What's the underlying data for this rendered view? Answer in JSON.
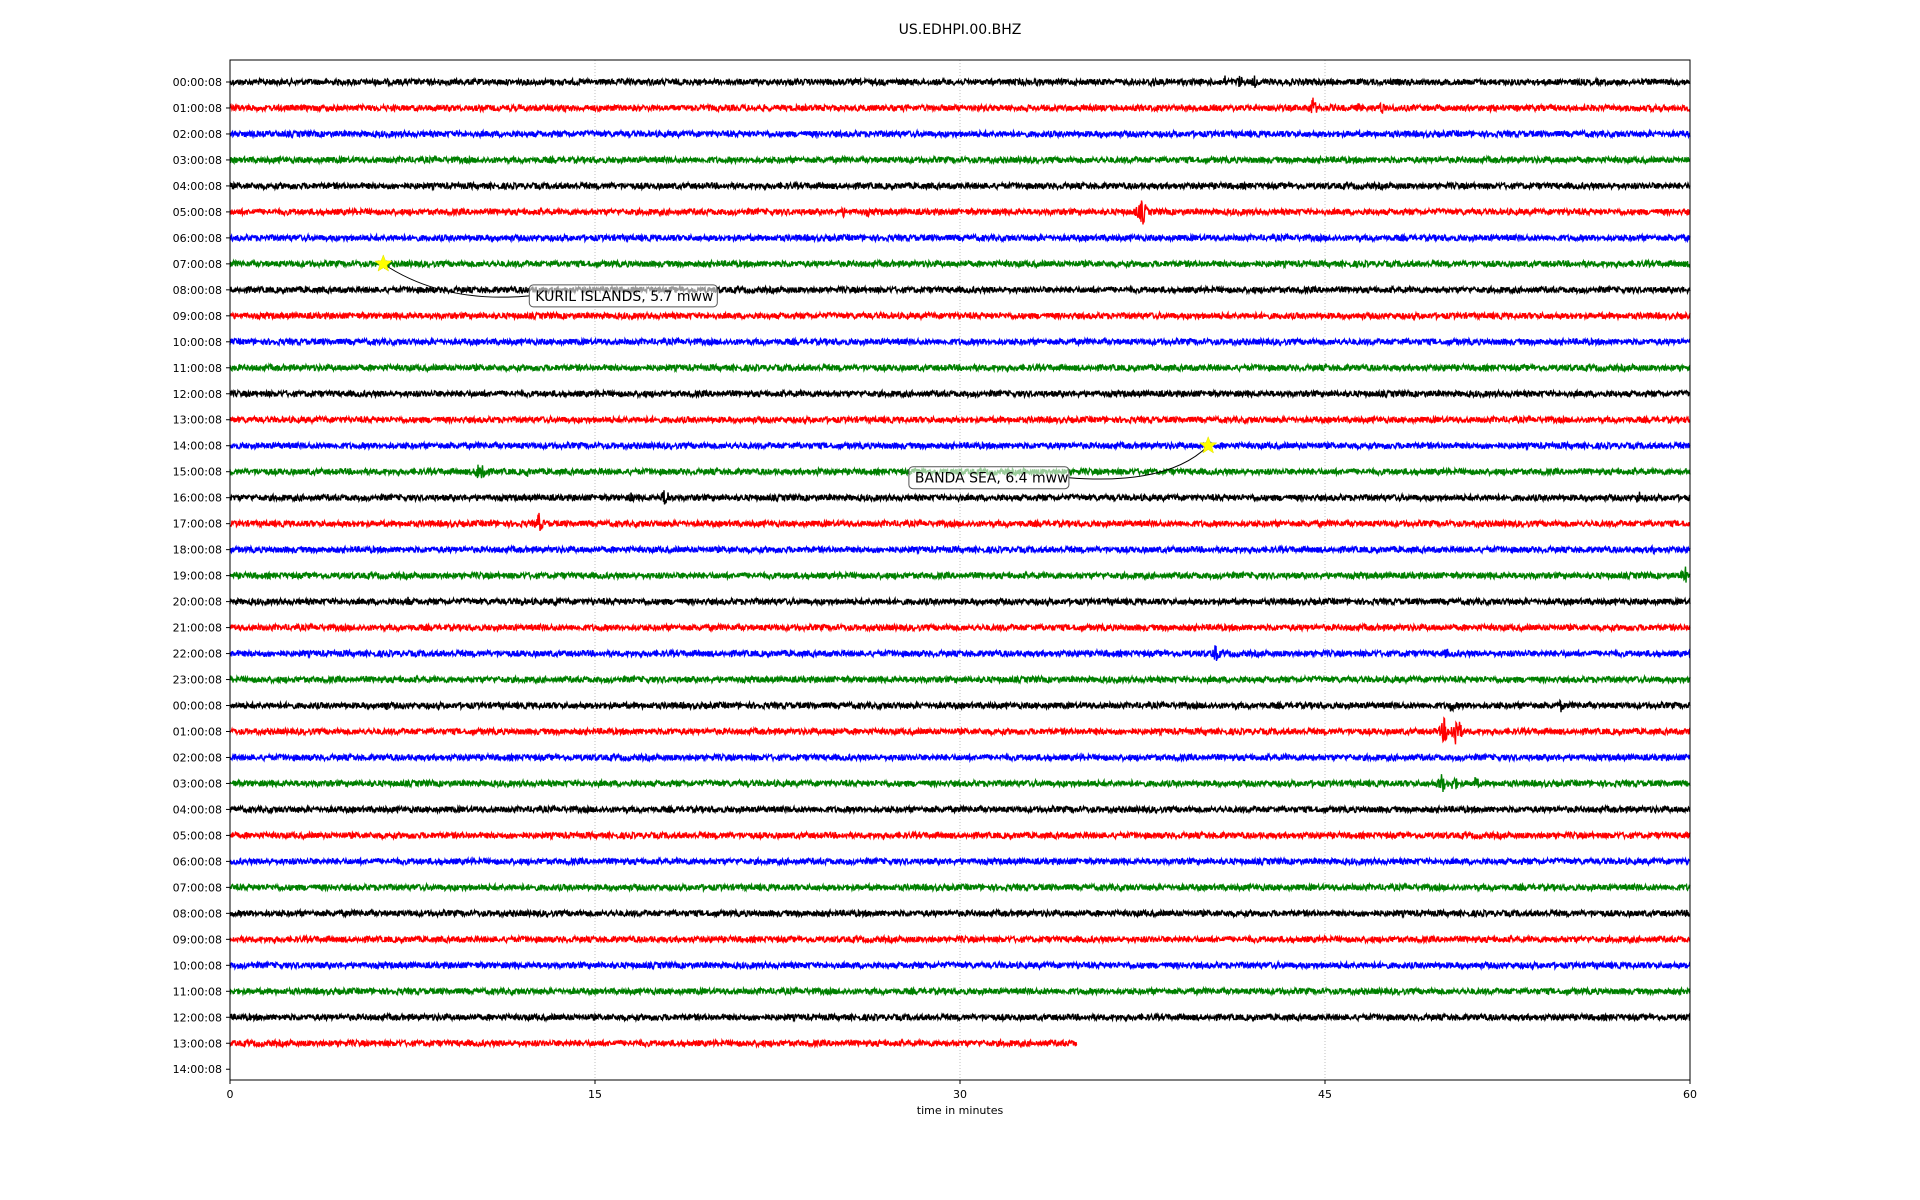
{
  "chart_data": {
    "type": "line",
    "title": "US.EDHPI.00.BHZ",
    "xlabel": "time in minutes",
    "ylabel": "",
    "xlim": [
      0,
      60
    ],
    "xticks": [
      "0",
      "15",
      "30",
      "45",
      "60"
    ],
    "xtick_values": [
      0,
      15,
      30,
      45,
      60
    ],
    "grid": "vertical dotted at 15, 30, 45",
    "colors": [
      "#000000",
      "#ff0000",
      "#0000ff",
      "#008000"
    ],
    "row_labels": [
      "00:00:08",
      "01:00:08",
      "02:00:08",
      "03:00:08",
      "04:00:08",
      "05:00:08",
      "06:00:08",
      "07:00:08",
      "08:00:08",
      "09:00:08",
      "10:00:08",
      "11:00:08",
      "12:00:08",
      "13:00:08",
      "14:00:08",
      "15:00:08",
      "16:00:08",
      "17:00:08",
      "18:00:08",
      "19:00:08",
      "20:00:08",
      "21:00:08",
      "22:00:08",
      "23:00:08",
      "00:00:08",
      "01:00:08",
      "02:00:08",
      "03:00:08",
      "04:00:08",
      "05:00:08",
      "06:00:08",
      "07:00:08",
      "08:00:08",
      "09:00:08",
      "10:00:08",
      "11:00:08",
      "12:00:08",
      "13:00:08",
      "14:00:08"
    ],
    "last_trace_end_minute": 34.8,
    "events_by_row": {
      "0": [
        [
          37.9,
          8
        ],
        [
          40.9,
          7
        ],
        [
          41.5,
          8
        ],
        [
          42.1,
          7
        ]
      ],
      "1": [
        [
          44.5,
          12
        ],
        [
          46.4,
          6
        ],
        [
          47.3,
          8
        ],
        [
          51.8,
          4
        ]
      ],
      "5": [
        [
          16.7,
          3
        ],
        [
          25.2,
          6
        ],
        [
          26.2,
          5
        ],
        [
          37.3,
          8
        ],
        [
          37.5,
          16
        ]
      ],
      "15": [
        [
          10.2,
          10
        ],
        [
          10.4,
          14
        ],
        [
          12.2,
          6
        ],
        [
          24.2,
          5
        ]
      ],
      "16": [
        [
          16.5,
          6
        ],
        [
          17.9,
          12
        ],
        [
          30,
          5
        ],
        [
          51.9,
          4
        ],
        [
          57.9,
          8
        ]
      ],
      "17": [
        [
          10.7,
          5
        ],
        [
          12.7,
          12
        ],
        [
          16.1,
          4
        ],
        [
          32.4,
          4
        ]
      ],
      "18": [
        [
          20.5,
          5
        ],
        [
          42.6,
          3
        ],
        [
          58.5,
          5
        ]
      ],
      "19": [
        [
          3.4,
          4
        ],
        [
          13.9,
          3
        ],
        [
          59.8,
          10
        ]
      ],
      "20": [
        [
          2.8,
          4
        ],
        [
          7.3,
          6
        ],
        [
          12,
          5
        ],
        [
          13.4,
          6
        ]
      ],
      "21": [
        [
          1.3,
          4
        ],
        [
          46.1,
          4
        ]
      ],
      "22": [
        [
          36,
          4
        ],
        [
          40.5,
          10
        ],
        [
          50,
          6
        ]
      ],
      "23": [
        [
          1.4,
          3
        ]
      ],
      "24": [
        [
          6.4,
          6
        ],
        [
          50.2,
          8
        ],
        [
          54.7,
          7
        ]
      ],
      "25": [
        [
          3.4,
          4
        ],
        [
          18.1,
          6
        ],
        [
          24.8,
          6
        ],
        [
          35.6,
          4
        ],
        [
          40.1,
          5
        ],
        [
          49.9,
          15
        ],
        [
          50.4,
          22
        ]
      ],
      "26": [
        [
          19.2,
          3
        ]
      ],
      "27": [
        [
          5.5,
          3
        ],
        [
          35.3,
          5
        ],
        [
          49.8,
          12
        ],
        [
          50.3,
          10
        ],
        [
          51.2,
          8
        ]
      ],
      "36": [
        [
          1.3,
          3
        ]
      ]
    },
    "annotations": [
      {
        "text": "KURIL ISLANDS, 5.7 mww",
        "row": 7,
        "minute": 6.3,
        "marker_color": "#ffff00"
      },
      {
        "text": "BANDA SEA, 6.4 mww",
        "row": 14,
        "minute": 40.2,
        "marker_color": "#ffff00"
      }
    ]
  }
}
